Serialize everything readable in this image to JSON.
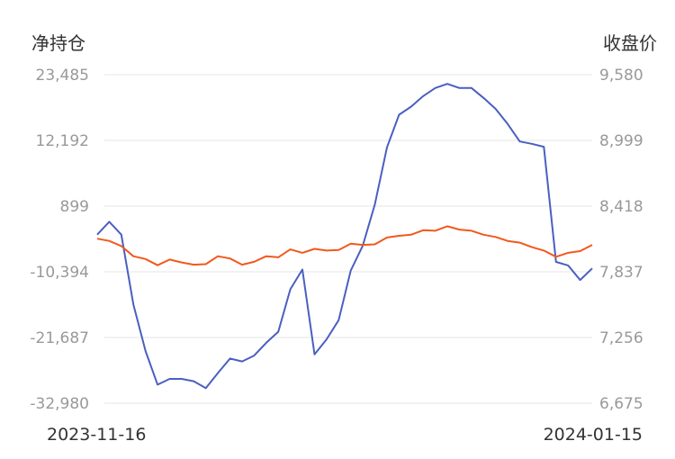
{
  "chart_data": {
    "type": "line",
    "left_axis_title": "净持仓",
    "right_axis_title": "收盘价",
    "left_ticks": [
      "23,485",
      "12,192",
      "899",
      "-10,394",
      "-21,687",
      "-32,980"
    ],
    "right_ticks": [
      "9,580",
      "8,999",
      "8,418",
      "7,837",
      "7,256",
      "6,675"
    ],
    "left_ylim": [
      -32980,
      23485
    ],
    "right_ylim": [
      6675,
      9580
    ],
    "x_start_label": "2023-11-16",
    "x_end_label": "2024-01-15",
    "grid": true,
    "series": [
      {
        "axis": "left",
        "color": "#4a5fc1",
        "values": [
          -4000,
          -1800,
          -4000,
          -16000,
          -24000,
          -29800,
          -28800,
          -28800,
          -29200,
          -30400,
          -27800,
          -25300,
          -25800,
          -24800,
          -22600,
          -20700,
          -13400,
          -10000,
          -24600,
          -22000,
          -18700,
          -10200,
          -5900,
          1200,
          11000,
          16600,
          18000,
          19800,
          21200,
          21900,
          21200,
          21200,
          19500,
          17600,
          15000,
          12000,
          11600,
          11100,
          -8700,
          -9300,
          -11800,
          -9800
        ]
      },
      {
        "axis": "right",
        "color": "#f2581c",
        "values": [
          8130,
          8110,
          8065,
          7975,
          7950,
          7895,
          7945,
          7920,
          7900,
          7905,
          7975,
          7955,
          7900,
          7925,
          7975,
          7965,
          8035,
          8005,
          8040,
          8025,
          8030,
          8085,
          8075,
          8080,
          8140,
          8155,
          8165,
          8205,
          8200,
          8240,
          8210,
          8200,
          8165,
          8145,
          8110,
          8095,
          8055,
          8025,
          7970,
          8005,
          8020,
          8075
        ]
      }
    ]
  }
}
